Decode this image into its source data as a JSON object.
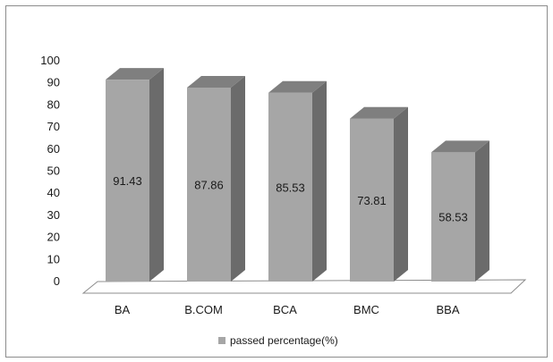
{
  "chart_data": {
    "type": "bar",
    "categories": [
      "BA",
      "B.COM",
      "BCA",
      "BMC",
      "BBA"
    ],
    "series": [
      {
        "name": "passed percentage(%)",
        "values": [
          91.43,
          87.86,
          85.53,
          73.81,
          58.53
        ]
      }
    ],
    "data_labels": [
      "91.43",
      "87.86",
      "85.53",
      "73.81",
      "58.53"
    ],
    "y_ticks": [
      "0",
      "10",
      "20",
      "30",
      "40",
      "50",
      "60",
      "70",
      "80",
      "90",
      "100"
    ],
    "ylim": [
      0,
      100
    ],
    "grid": false,
    "style": "3d-column",
    "legend_position": "bottom",
    "colors": {
      "bar_front": "#a6a6a6",
      "bar_side": "#6b6b6b",
      "bar_top": "#7f7f7f",
      "floor": "#ffffff",
      "floor_stroke": "#8c8c8c",
      "legend_swatch": "#a6a6a6"
    }
  }
}
